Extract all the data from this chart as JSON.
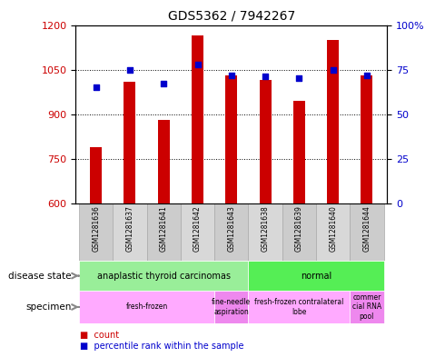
{
  "title": "GDS5362 / 7942267",
  "samples": [
    "GSM1281636",
    "GSM1281637",
    "GSM1281641",
    "GSM1281642",
    "GSM1281643",
    "GSM1281638",
    "GSM1281639",
    "GSM1281640",
    "GSM1281644"
  ],
  "counts": [
    790,
    1010,
    880,
    1165,
    1030,
    1015,
    945,
    1150,
    1030
  ],
  "percentiles": [
    65,
    75,
    67,
    78,
    72,
    71,
    70,
    75,
    72
  ],
  "ylim_left": [
    600,
    1200
  ],
  "ylim_right": [
    0,
    100
  ],
  "yticks_left": [
    600,
    750,
    900,
    1050,
    1200
  ],
  "yticks_right": [
    0,
    25,
    50,
    75,
    100
  ],
  "bar_color": "#cc0000",
  "dot_color": "#0000cc",
  "bar_width": 0.35,
  "disease_state_groups": [
    {
      "label": "anaplastic thyroid carcinomas",
      "start": 0,
      "end": 5,
      "color": "#99ee99"
    },
    {
      "label": "normal",
      "start": 5,
      "end": 9,
      "color": "#55ee55"
    }
  ],
  "specimen_groups": [
    {
      "label": "fresh-frozen",
      "start": 0,
      "end": 4,
      "color": "#ffaaff"
    },
    {
      "label": "fine-needle\naspiration",
      "start": 4,
      "end": 5,
      "color": "#ee88ee"
    },
    {
      "label": "fresh-frozen contralateral\nlobe",
      "start": 5,
      "end": 8,
      "color": "#ffaaff"
    },
    {
      "label": "commer\ncial RNA\npool",
      "start": 8,
      "end": 9,
      "color": "#ee88ee"
    }
  ],
  "legend_items": [
    {
      "label": "count",
      "color": "#cc0000"
    },
    {
      "label": "percentile rank within the sample",
      "color": "#0000cc"
    }
  ],
  "gridline_vals": [
    750,
    900,
    1050
  ],
  "sample_box_colors": [
    "#cccccc",
    "#d8d8d8"
  ]
}
